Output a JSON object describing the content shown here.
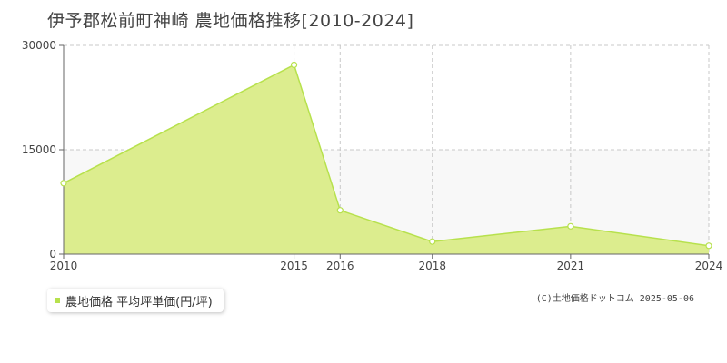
{
  "title": "伊予郡松前町神崎 農地価格推移[2010-2024]",
  "copyright": "(C)土地価格ドットコム 2025-05-06",
  "colors": {
    "fill": "#dced8e",
    "line": "#b7e14d",
    "marker_fill": "#ffffff",
    "grid": "#c8c8c8",
    "band": "#f8f8f8",
    "legend_swatch": "#b7e14d"
  },
  "chart_data": {
    "type": "area",
    "x": [
      2010,
      2015,
      2016,
      2018,
      2021,
      2024
    ],
    "series": [
      {
        "name": "農地価格 平均坪単価(円/坪)",
        "values": [
          10200,
          27200,
          6300,
          1800,
          4000,
          1200
        ]
      }
    ],
    "xlim": [
      2010,
      2024
    ],
    "ylim": [
      0,
      30000
    ],
    "yticks": [
      "0",
      "15000",
      "30000"
    ],
    "xticks": [
      "2010",
      "2015",
      "2016",
      "2018",
      "2021",
      "2024"
    ],
    "grid": true,
    "legend_position": "bottom-left"
  }
}
